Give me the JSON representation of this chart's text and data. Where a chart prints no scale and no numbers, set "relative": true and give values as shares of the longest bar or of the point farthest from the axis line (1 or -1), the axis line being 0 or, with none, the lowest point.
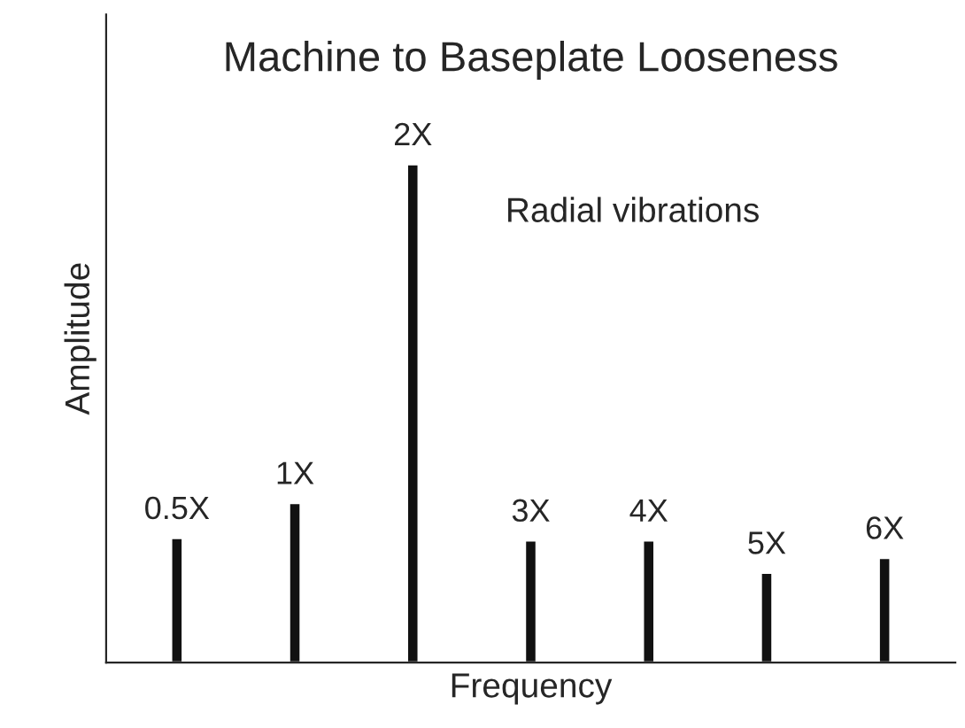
{
  "chart_data": {
    "type": "bar",
    "title": "Machine to Baseplate Looseness",
    "xlabel": "Frequency",
    "ylabel": "Amplitude",
    "categories": [
      "0.5X",
      "1X",
      "2X",
      "3X",
      "4X",
      "5X",
      "6X"
    ],
    "values": [
      0.25,
      0.32,
      1,
      0.245,
      0.245,
      0.18,
      0.21
    ],
    "color": "#111111",
    "relative": true,
    "annotations": [
      "Radial vibrations"
    ]
  }
}
